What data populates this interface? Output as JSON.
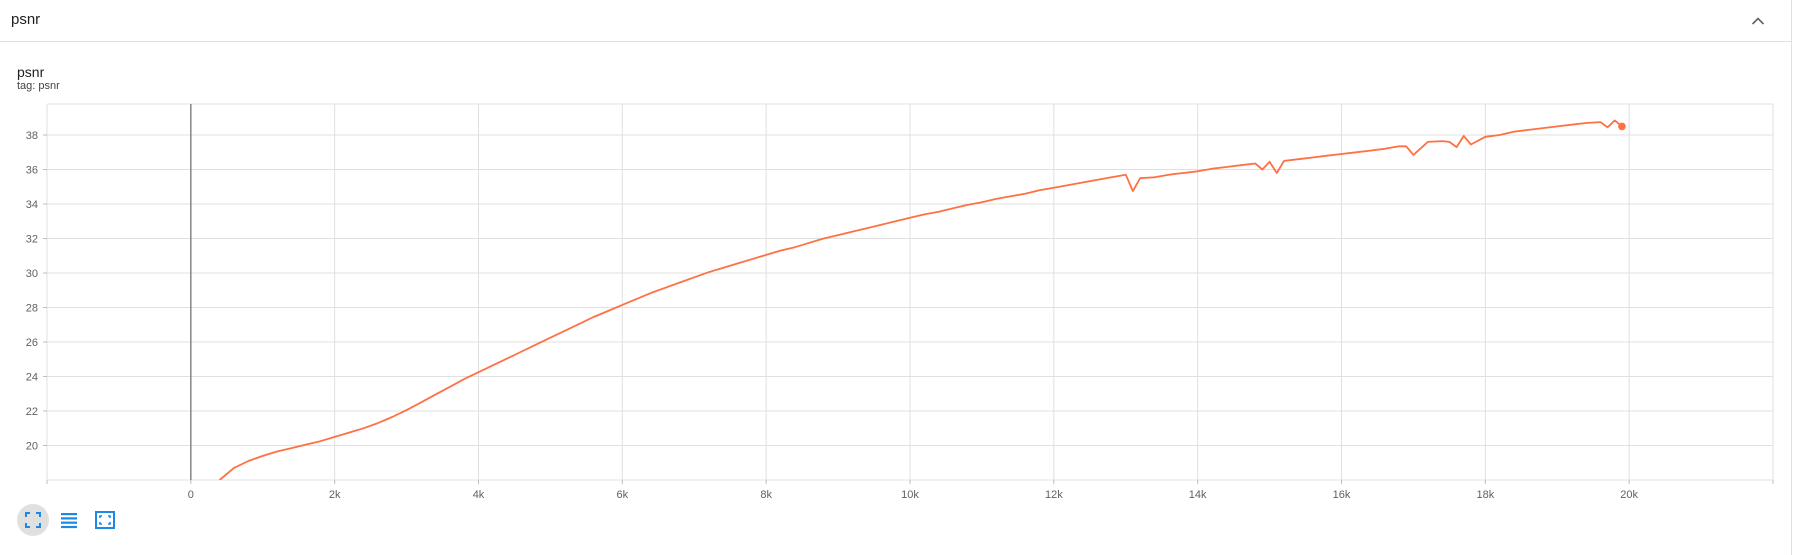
{
  "header": {
    "title": "psnr"
  },
  "card": {
    "title": "psnr",
    "tag": "tag: psnr"
  },
  "colors": {
    "series": "#ff7043",
    "grid": "#e0e0e0",
    "axis_text": "#616161",
    "toolbar_icon": "#1e88e5"
  },
  "icons": {
    "collapse": "chevron-up-icon",
    "fullscreen": "fullscreen-icon",
    "log_scale": "lines-icon",
    "fit_domain": "fit-domain-icon"
  },
  "chart_data": {
    "type": "line",
    "title": "psnr",
    "xlabel": "",
    "ylabel": "",
    "xlim": [
      -2000,
      22000
    ],
    "ylim": [
      18.0,
      39.8
    ],
    "x_ticks": [
      0,
      2000,
      4000,
      6000,
      8000,
      10000,
      12000,
      14000,
      16000,
      18000,
      20000
    ],
    "x_tick_labels": [
      "0",
      "2k",
      "4k",
      "6k",
      "8k",
      "10k",
      "12k",
      "14k",
      "16k",
      "18k",
      "20k"
    ],
    "y_ticks": [
      20,
      22,
      24,
      26,
      28,
      30,
      32,
      34,
      36,
      38
    ],
    "y_tick_labels": [
      "20",
      "22",
      "24",
      "26",
      "28",
      "30",
      "32",
      "34",
      "36",
      "38"
    ],
    "grid": true,
    "series": [
      {
        "x": [
          400,
          600,
          800,
          1000,
          1200,
          1400,
          1600,
          1800,
          2000,
          2200,
          2400,
          2600,
          2800,
          3000,
          3200,
          3400,
          3600,
          3800,
          4000,
          4200,
          4400,
          4600,
          4800,
          5000,
          5200,
          5400,
          5600,
          5800,
          6000,
          6200,
          6400,
          6600,
          6800,
          7000,
          7200,
          7400,
          7600,
          7800,
          8000,
          8200,
          8400,
          8600,
          8800,
          9000,
          9200,
          9400,
          9600,
          9800,
          10000,
          10200,
          10400,
          10600,
          10800,
          11000,
          11200,
          11400,
          11600,
          11800,
          12000,
          12200,
          12400,
          12600,
          12800,
          13000,
          13100,
          13200,
          13400,
          13600,
          13800,
          14000,
          14200,
          14400,
          14600,
          14800,
          14900,
          15000,
          15100,
          15200,
          15400,
          15600,
          15800,
          16000,
          16200,
          16400,
          16600,
          16800,
          16900,
          17000,
          17200,
          17400,
          17500,
          17600,
          17700,
          17800,
          18000,
          18200,
          18400,
          18600,
          18800,
          19000,
          19200,
          19400,
          19600,
          19700,
          19800,
          19900
        ],
        "values": [
          18.0,
          18.7,
          19.1,
          19.4,
          19.65,
          19.85,
          20.05,
          20.25,
          20.5,
          20.75,
          21.0,
          21.3,
          21.65,
          22.05,
          22.5,
          22.95,
          23.4,
          23.85,
          24.25,
          24.65,
          25.05,
          25.45,
          25.85,
          26.25,
          26.65,
          27.05,
          27.45,
          27.8,
          28.15,
          28.5,
          28.85,
          29.15,
          29.45,
          29.75,
          30.05,
          30.3,
          30.55,
          30.8,
          31.05,
          31.3,
          31.5,
          31.75,
          32.0,
          32.2,
          32.4,
          32.6,
          32.8,
          33.0,
          33.2,
          33.4,
          33.55,
          33.75,
          33.95,
          34.1,
          34.3,
          34.45,
          34.6,
          34.8,
          34.95,
          35.1,
          35.25,
          35.4,
          35.55,
          35.7,
          34.75,
          35.5,
          35.55,
          35.7,
          35.8,
          35.9,
          36.05,
          36.15,
          36.25,
          36.35,
          36.0,
          36.45,
          35.8,
          36.5,
          36.6,
          36.7,
          36.8,
          36.9,
          37.0,
          37.1,
          37.2,
          37.35,
          37.35,
          36.85,
          37.6,
          37.65,
          37.6,
          37.3,
          37.95,
          37.45,
          37.9,
          38.0,
          38.2,
          38.3,
          38.4,
          38.5,
          38.6,
          38.7,
          38.75,
          38.45,
          38.85,
          38.5
        ]
      }
    ]
  },
  "toolbar": {
    "fullscreen_active": true
  }
}
